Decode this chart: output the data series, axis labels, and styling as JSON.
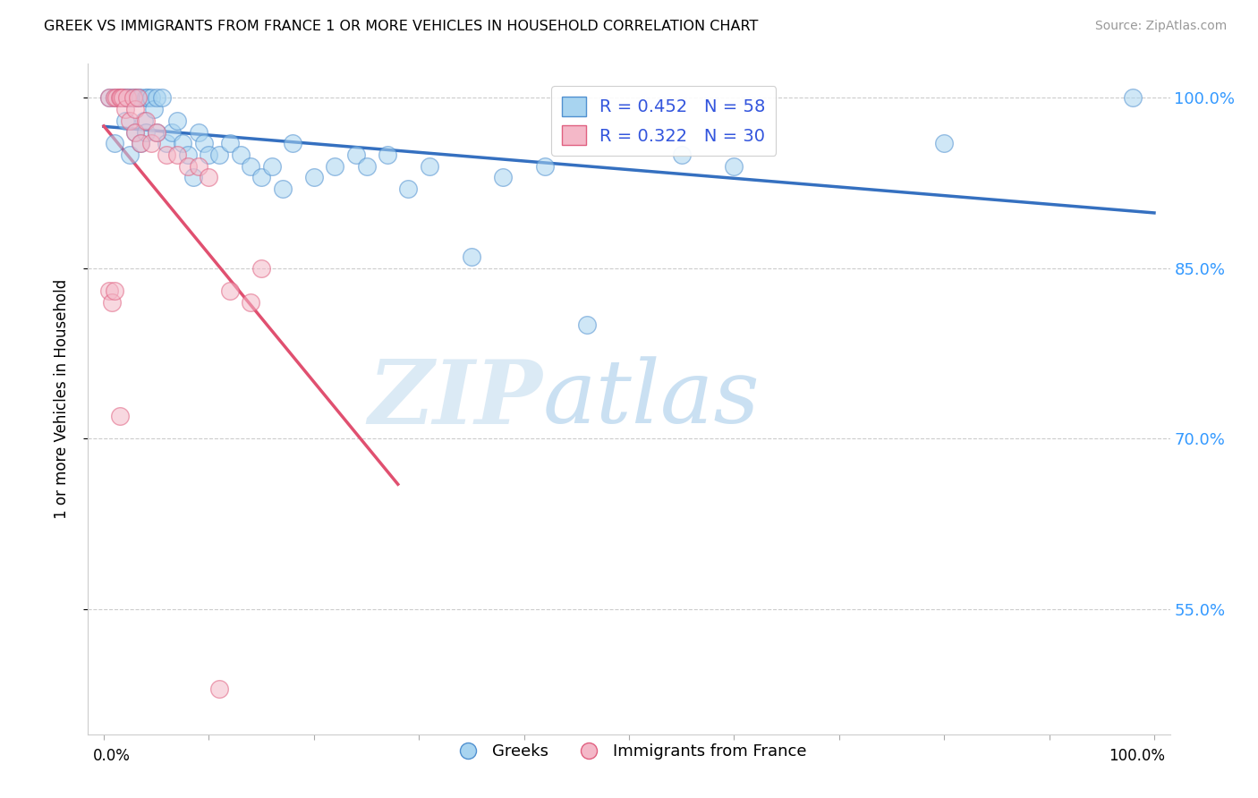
{
  "title": "GREEK VS IMMIGRANTS FROM FRANCE 1 OR MORE VEHICLES IN HOUSEHOLD CORRELATION CHART",
  "source": "Source: ZipAtlas.com",
  "ylabel": "1 or more Vehicles in Household",
  "xlim": [
    0.0,
    1.0
  ],
  "ylim": [
    0.44,
    1.03
  ],
  "ytick_labels": [
    "55.0%",
    "70.0%",
    "85.0%",
    "100.0%"
  ],
  "ytick_values": [
    0.55,
    0.7,
    0.85,
    1.0
  ],
  "legend_greek": "Greeks",
  "legend_france": "Immigrants from France",
  "R_greek": 0.452,
  "N_greek": 58,
  "R_france": 0.322,
  "N_france": 30,
  "color_greek": "#a8d4f0",
  "color_france": "#f4b8c8",
  "edge_greek": "#5090d0",
  "edge_france": "#e06080",
  "trendline_greek": "#3570c0",
  "trendline_france": "#e05070",
  "greek_x": [
    0.005,
    0.01,
    0.01,
    0.015,
    0.015,
    0.018,
    0.02,
    0.02,
    0.022,
    0.025,
    0.025,
    0.028,
    0.03,
    0.03,
    0.032,
    0.035,
    0.035,
    0.038,
    0.04,
    0.04,
    0.042,
    0.045,
    0.048,
    0.05,
    0.05,
    0.055,
    0.06,
    0.065,
    0.07,
    0.075,
    0.08,
    0.085,
    0.09,
    0.095,
    0.1,
    0.11,
    0.12,
    0.13,
    0.14,
    0.15,
    0.16,
    0.17,
    0.18,
    0.2,
    0.22,
    0.24,
    0.25,
    0.27,
    0.29,
    0.31,
    0.35,
    0.38,
    0.42,
    0.46,
    0.55,
    0.6,
    0.8,
    0.98
  ],
  "greek_y": [
    1.0,
    1.0,
    0.96,
    1.0,
    1.0,
    1.0,
    1.0,
    0.98,
    1.0,
    1.0,
    0.95,
    1.0,
    1.0,
    0.97,
    1.0,
    1.0,
    0.96,
    0.98,
    1.0,
    0.97,
    1.0,
    1.0,
    0.99,
    1.0,
    0.97,
    1.0,
    0.96,
    0.97,
    0.98,
    0.96,
    0.95,
    0.93,
    0.97,
    0.96,
    0.95,
    0.95,
    0.96,
    0.95,
    0.94,
    0.93,
    0.94,
    0.92,
    0.96,
    0.93,
    0.94,
    0.95,
    0.94,
    0.95,
    0.92,
    0.94,
    0.86,
    0.93,
    0.94,
    0.8,
    0.95,
    0.94,
    0.96,
    1.0
  ],
  "france_x": [
    0.005,
    0.01,
    0.012,
    0.015,
    0.016,
    0.018,
    0.02,
    0.022,
    0.025,
    0.028,
    0.03,
    0.03,
    0.032,
    0.035,
    0.04,
    0.045,
    0.05,
    0.06,
    0.07,
    0.08,
    0.09,
    0.1,
    0.12,
    0.14,
    0.15,
    0.005,
    0.008,
    0.01,
    0.015,
    0.11
  ],
  "france_y": [
    1.0,
    1.0,
    1.0,
    1.0,
    1.0,
    1.0,
    0.99,
    1.0,
    0.98,
    1.0,
    0.97,
    0.99,
    1.0,
    0.96,
    0.98,
    0.96,
    0.97,
    0.95,
    0.95,
    0.94,
    0.94,
    0.93,
    0.83,
    0.82,
    0.85,
    0.83,
    0.82,
    0.83,
    0.72,
    0.48
  ],
  "watermark_zip": "ZIP",
  "watermark_atlas": "atlas",
  "background_color": "#ffffff"
}
